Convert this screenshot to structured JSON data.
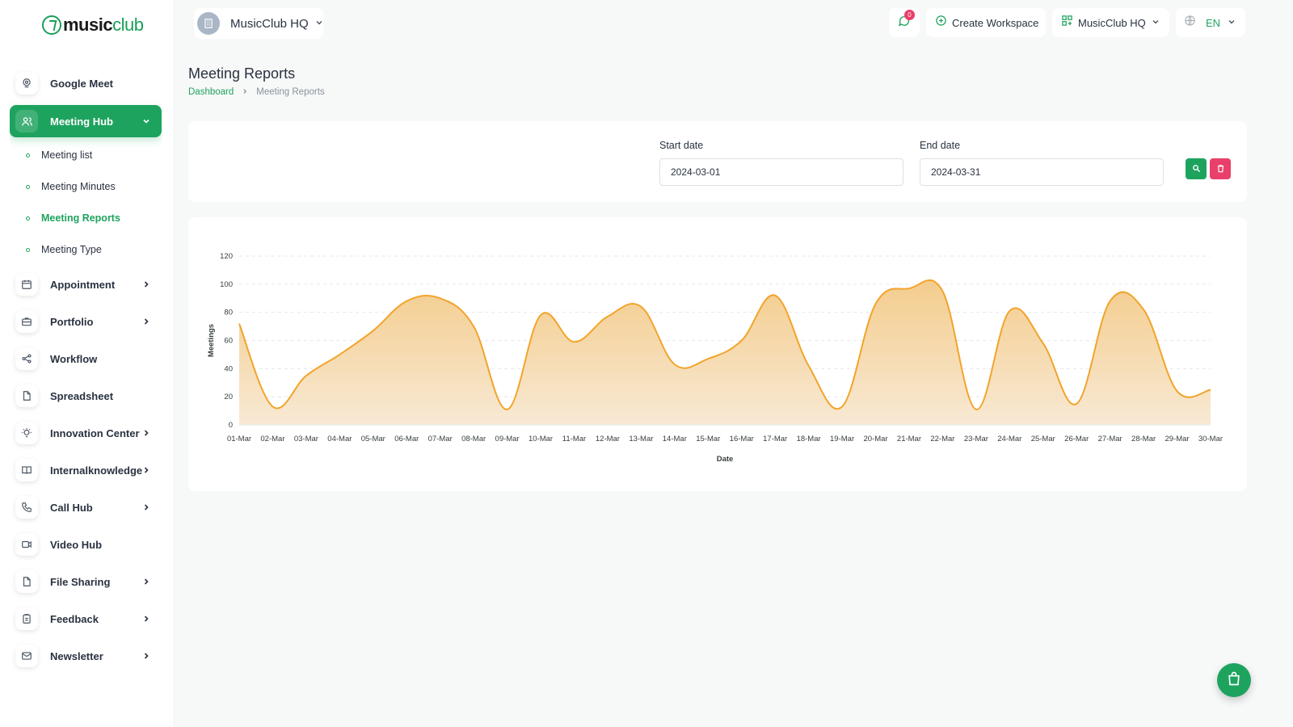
{
  "brand": {
    "name_part1": "music",
    "name_part2": "club",
    "accent": "#1ea35f"
  },
  "sidebar": {
    "items": [
      {
        "label": "Google Meet",
        "icon": "webcam-icon",
        "has_children": false
      },
      {
        "label": "Meeting Hub",
        "icon": "users-icon",
        "has_children": true,
        "active": true,
        "expanded": true
      },
      {
        "label": "Appointment",
        "icon": "calendar-icon",
        "has_children": true
      },
      {
        "label": "Portfolio",
        "icon": "briefcase-icon",
        "has_children": true
      },
      {
        "label": "Workflow",
        "icon": "share-icon",
        "has_children": false
      },
      {
        "label": "Spreadsheet",
        "icon": "file-icon",
        "has_children": false
      },
      {
        "label": "Innovation Center",
        "icon": "bulb-icon",
        "has_children": true
      },
      {
        "label": "Internalknowledge",
        "icon": "book-icon",
        "has_children": true
      },
      {
        "label": "Call Hub",
        "icon": "phone-icon",
        "has_children": true
      },
      {
        "label": "Video Hub",
        "icon": "video-icon",
        "has_children": false
      },
      {
        "label": "File Sharing",
        "icon": "file-icon",
        "has_children": true
      },
      {
        "label": "Feedback",
        "icon": "clipboard-icon",
        "has_children": true
      },
      {
        "label": "Newsletter",
        "icon": "mail-icon",
        "has_children": true
      }
    ],
    "sub_items": [
      {
        "label": "Meeting list",
        "active": false
      },
      {
        "label": "Meeting Minutes",
        "active": false
      },
      {
        "label": "Meeting Reports",
        "active": true
      },
      {
        "label": "Meeting Type",
        "active": false
      }
    ]
  },
  "header": {
    "workspace": "MusicClub HQ",
    "notification_count": "0",
    "create_workspace": "Create Workspace",
    "workspace_menu": "MusicClub HQ",
    "language": "EN"
  },
  "page": {
    "title": "Meeting Reports",
    "breadcrumb": {
      "home": "Dashboard",
      "current": "Meeting Reports"
    }
  },
  "filters": {
    "start_label": "Start date",
    "start_value": "2024-03-01",
    "end_label": "End date",
    "end_value": "2024-03-31"
  },
  "colors": {
    "line": "#f2a42b",
    "area_top": "#f2c47a",
    "area_bottom": "#f7e7d0",
    "grid": "#e4e7ea",
    "danger": "#ea3f6a"
  },
  "chart_data": {
    "type": "area",
    "xlabel": "Date",
    "ylabel": "Meetings",
    "ylim": [
      0,
      120
    ],
    "yticks": [
      0,
      20,
      40,
      60,
      80,
      100,
      120
    ],
    "grid": true,
    "categories": [
      "01-Mar",
      "02-Mar",
      "03-Mar",
      "04-Mar",
      "05-Mar",
      "06-Mar",
      "07-Mar",
      "08-Mar",
      "09-Mar",
      "10-Mar",
      "11-Mar",
      "12-Mar",
      "13-Mar",
      "14-Mar",
      "15-Mar",
      "16-Mar",
      "17-Mar",
      "18-Mar",
      "19-Mar",
      "20-Mar",
      "21-Mar",
      "22-Mar",
      "23-Mar",
      "24-Mar",
      "25-Mar",
      "26-Mar",
      "27-Mar",
      "28-Mar",
      "29-Mar",
      "30-Mar"
    ],
    "series": [
      {
        "values": [
          72,
          13,
          35,
          50,
          67,
          88,
          90,
          70,
          11,
          78,
          59,
          77,
          84,
          43,
          47,
          60,
          92,
          42,
          13,
          86,
          97,
          95,
          11,
          81,
          58,
          15,
          88,
          82,
          24,
          25
        ]
      }
    ]
  }
}
